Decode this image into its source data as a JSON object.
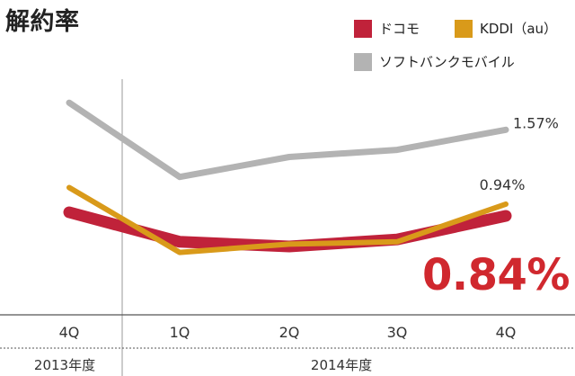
{
  "title": "解約率",
  "colors": {
    "docomo": "#c0223a",
    "kddi": "#d99a1a",
    "softbank": "#b3b3b3",
    "highlight": "#d0282e"
  },
  "legend": [
    {
      "label": "ドコモ",
      "color": "#c0223a"
    },
    {
      "label": "KDDI（au）",
      "color": "#d99a1a"
    },
    {
      "label": "ソフトバンクモバイル",
      "color": "#b3b3b3"
    }
  ],
  "highlight_value": "0.84%",
  "chart_data": {
    "type": "line",
    "title": "解約率",
    "categories": [
      "4Q",
      "1Q",
      "2Q",
      "3Q",
      "4Q"
    ],
    "fiscal_years": [
      {
        "label": "2013年度",
        "covers": [
          "4Q"
        ]
      },
      {
        "label": "2014年度",
        "covers": [
          "1Q",
          "2Q",
          "3Q",
          "4Q"
        ]
      }
    ],
    "series": [
      {
        "name": "ドコモ",
        "values": [
          0.87,
          0.62,
          0.58,
          0.64,
          0.84
        ],
        "end_label": "0.84%"
      },
      {
        "name": "KDDI（au）",
        "values": [
          1.08,
          0.53,
          0.6,
          0.62,
          0.94
        ],
        "end_label": "0.94%"
      },
      {
        "name": "ソフトバンクモバイル",
        "values": [
          1.8,
          1.17,
          1.34,
          1.4,
          1.57
        ],
        "end_label": "1.57%"
      }
    ],
    "ylim": [
      0,
      2.0
    ],
    "grid": false,
    "legend_position": "top-right"
  }
}
